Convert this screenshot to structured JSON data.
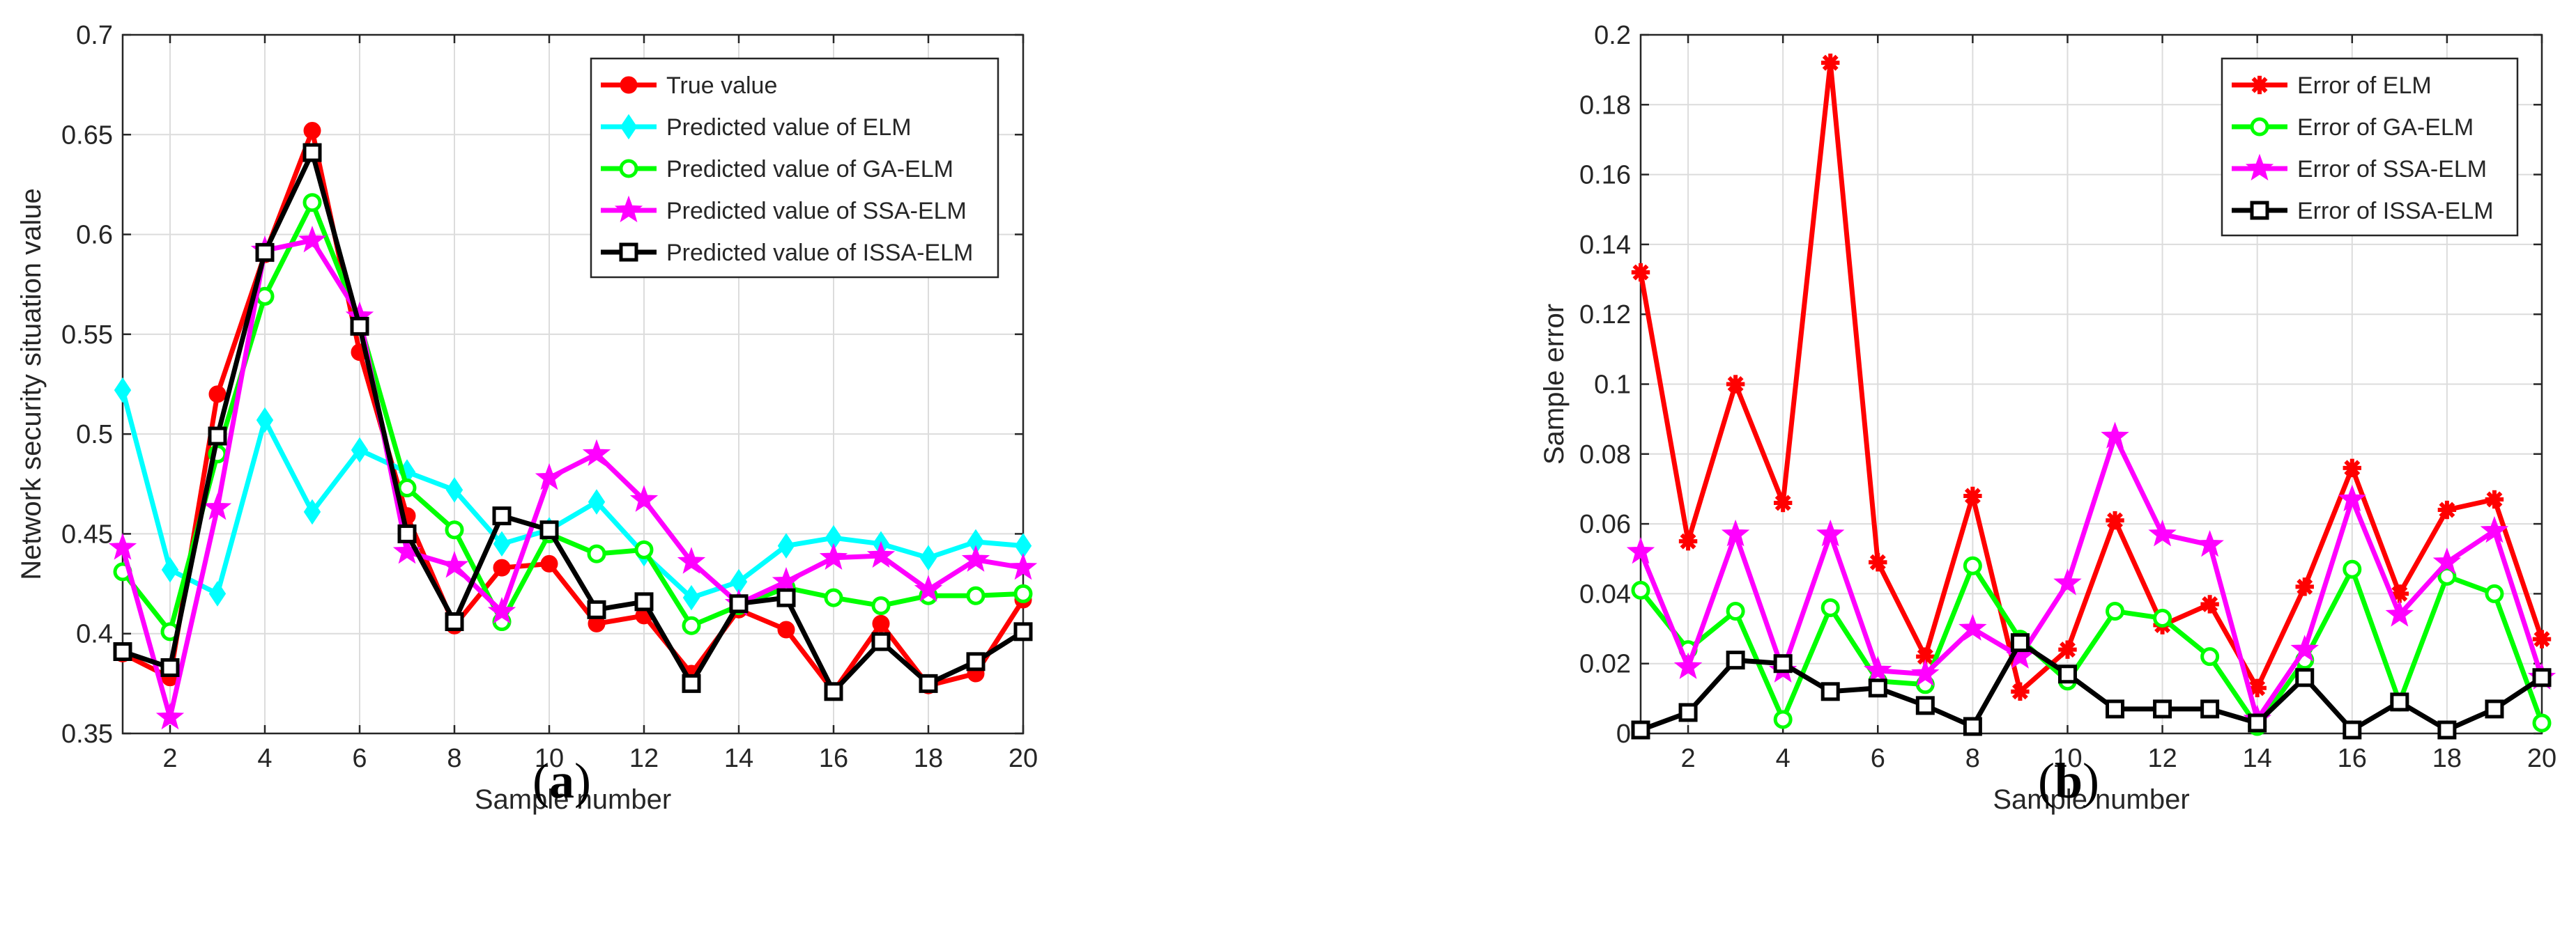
{
  "panel_labels": {
    "a": "a",
    "b": "b"
  },
  "chart_data": [
    {
      "type": "line",
      "xlabel": "Sample number",
      "ylabel": "Network security situation value",
      "xlim": [
        1,
        20
      ],
      "ylim": [
        0.35,
        0.7
      ],
      "xticks": [
        2,
        4,
        6,
        8,
        10,
        12,
        14,
        16,
        18,
        20
      ],
      "yticks": [
        0.35,
        0.4,
        0.45,
        0.5,
        0.55,
        0.6,
        0.65,
        0.7
      ],
      "grid": true,
      "legend_position": "top-right",
      "x": [
        1,
        2,
        3,
        4,
        5,
        6,
        7,
        8,
        9,
        10,
        11,
        12,
        13,
        14,
        15,
        16,
        17,
        18,
        19,
        20
      ],
      "series": [
        {
          "name": "True value",
          "color": "#ff0000",
          "marker": "circle",
          "values": [
            0.39,
            0.378,
            0.52,
            0.59,
            0.652,
            0.541,
            0.459,
            0.404,
            0.433,
            0.435,
            0.405,
            0.409,
            0.38,
            0.412,
            0.402,
            0.371,
            0.405,
            0.374,
            0.38,
            0.417
          ]
        },
        {
          "name": "Predicted value of ELM",
          "color": "#00ffff",
          "marker": "diamond",
          "values": [
            0.522,
            0.432,
            0.42,
            0.507,
            0.461,
            0.492,
            0.481,
            0.472,
            0.445,
            0.452,
            0.466,
            0.44,
            0.418,
            0.426,
            0.444,
            0.448,
            0.445,
            0.438,
            0.446,
            0.444
          ]
        },
        {
          "name": "Predicted value of GA-ELM",
          "color": "#00ff00",
          "marker": "circle-open",
          "values": [
            0.431,
            0.401,
            0.49,
            0.569,
            0.616,
            0.556,
            0.473,
            0.452,
            0.406,
            0.45,
            0.44,
            0.442,
            0.404,
            0.414,
            0.423,
            0.418,
            0.414,
            0.419,
            0.419,
            0.42
          ]
        },
        {
          "name": "Predicted value of SSA-ELM",
          "color": "#ff00ff",
          "marker": "star",
          "values": [
            0.443,
            0.358,
            0.463,
            0.592,
            0.597,
            0.559,
            0.441,
            0.434,
            0.411,
            0.478,
            0.49,
            0.467,
            0.436,
            0.415,
            0.426,
            0.438,
            0.439,
            0.422,
            0.437,
            0.433
          ]
        },
        {
          "name": "Predicted value of ISSA-ELM",
          "color": "#000000",
          "marker": "square-open",
          "values": [
            0.391,
            0.383,
            0.499,
            0.591,
            0.641,
            0.554,
            0.45,
            0.406,
            0.459,
            0.452,
            0.412,
            0.416,
            0.375,
            0.415,
            0.418,
            0.371,
            0.396,
            0.375,
            0.386,
            0.401
          ]
        }
      ]
    },
    {
      "type": "line",
      "xlabel": "Sample number",
      "ylabel": "Sample error",
      "xlim": [
        1,
        20
      ],
      "ylim": [
        0,
        0.2
      ],
      "xticks": [
        2,
        4,
        6,
        8,
        10,
        12,
        14,
        16,
        18,
        20
      ],
      "yticks": [
        0,
        0.02,
        0.04,
        0.06,
        0.08,
        0.1,
        0.12,
        0.14,
        0.16,
        0.18,
        0.2
      ],
      "grid": true,
      "legend_position": "top-right",
      "x": [
        1,
        2,
        3,
        4,
        5,
        6,
        7,
        8,
        9,
        10,
        11,
        12,
        13,
        14,
        15,
        16,
        17,
        18,
        19,
        20
      ],
      "series": [
        {
          "name": "Error of ELM",
          "color": "#ff0000",
          "marker": "asterisk",
          "values": [
            0.132,
            0.055,
            0.1,
            0.066,
            0.192,
            0.049,
            0.022,
            0.068,
            0.012,
            0.024,
            0.061,
            0.031,
            0.037,
            0.013,
            0.042,
            0.076,
            0.04,
            0.064,
            0.067,
            0.027
          ]
        },
        {
          "name": "Error of GA-ELM",
          "color": "#00ff00",
          "marker": "circle-open",
          "values": [
            0.041,
            0.024,
            0.035,
            0.004,
            0.036,
            0.015,
            0.014,
            0.048,
            0.027,
            0.015,
            0.035,
            0.033,
            0.022,
            0.002,
            0.021,
            0.047,
            0.009,
            0.045,
            0.04,
            0.003
          ]
        },
        {
          "name": "Error of SSA-ELM",
          "color": "#ff00ff",
          "marker": "star",
          "values": [
            0.052,
            0.019,
            0.057,
            0.018,
            0.057,
            0.018,
            0.017,
            0.03,
            0.022,
            0.043,
            0.085,
            0.057,
            0.054,
            0.004,
            0.024,
            0.067,
            0.034,
            0.049,
            0.058,
            0.016
          ]
        },
        {
          "name": "Error of ISSA-ELM",
          "color": "#000000",
          "marker": "square-open",
          "values": [
            0.001,
            0.006,
            0.021,
            0.02,
            0.012,
            0.013,
            0.008,
            0.002,
            0.026,
            0.017,
            0.007,
            0.007,
            0.007,
            0.003,
            0.016,
            0.001,
            0.009,
            0.001,
            0.007,
            0.016
          ]
        }
      ]
    }
  ]
}
